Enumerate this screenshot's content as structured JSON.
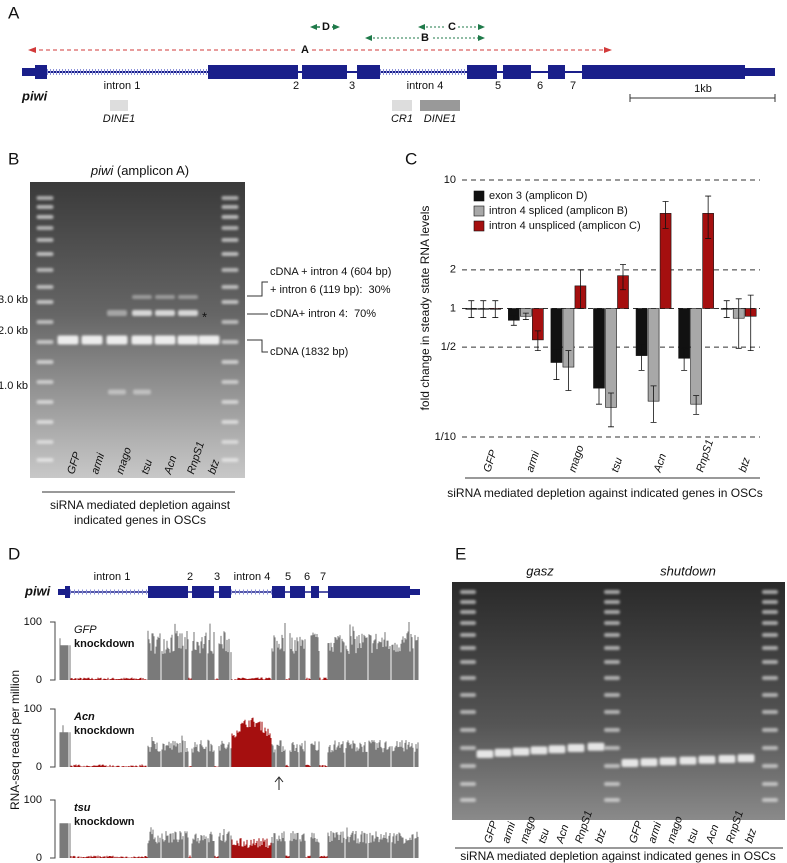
{
  "panel_a": {
    "label": "A",
    "amplicons": [
      "D",
      "C",
      "B",
      "A"
    ],
    "exon_labels": [
      "intron 1",
      "2",
      "3",
      "intron 4",
      "5",
      "6",
      "7"
    ],
    "gene": "piwi",
    "scale": "1kb",
    "elements": [
      "DINE1",
      "CR1",
      "DINE1"
    ]
  },
  "panel_b": {
    "label": "B",
    "title_gene": "piwi",
    "title_rest": " (amplicon A)",
    "sizes": [
      "3.0 kb",
      "2.0 kb",
      "1.0 kb"
    ],
    "lanes": [
      "GFP",
      "armi",
      "mago",
      "tsu",
      "Acn",
      "RnpS1",
      "btz"
    ],
    "star": "*",
    "annotations": [
      "cDNA + intron 4 (604 bp)",
      "+ intron 6 (119 bp):  30%",
      "cDNA+ intron 4:  70%",
      "cDNA (1832 bp)"
    ],
    "caption": [
      "siRNA mediated depletion against",
      "indicated genes in OSCs"
    ]
  },
  "chart_data": {
    "type": "bar",
    "label": "C",
    "y_label": "fold change in steady state RNA levels",
    "categories": [
      "GFP",
      "armi",
      "mago",
      "tsu",
      "Acn",
      "RnpS1",
      "btz"
    ],
    "log_scale": true,
    "ylim": [
      0.1,
      10
    ],
    "yticks": [
      {
        "value": 0.1,
        "label": "1/10"
      },
      {
        "value": 0.5,
        "label": "1/2"
      },
      1,
      2,
      10
    ],
    "grid": true,
    "legend": "upper left",
    "series": [
      {
        "name": "exon 3 (amplicon D)",
        "color": "#111111",
        "values": [
          1,
          0.81,
          0.38,
          0.24,
          0.43,
          0.41,
          1
        ],
        "errors": [
          0.15,
          0.07,
          0.1,
          0.06,
          0.1,
          0.08,
          0.15
        ]
      },
      {
        "name": "intron 4 spliced (amplicon B)",
        "color": "#a8a8a8",
        "values": [
          1,
          0.87,
          0.35,
          0.17,
          0.19,
          0.18,
          0.84
        ],
        "errors": [
          0.15,
          0.05,
          0.12,
          0.05,
          0.06,
          0.03,
          0.35
        ]
      },
      {
        "name": "intron 4 unspliced (amplicon C)",
        "color": "#a50f0f",
        "values": [
          1,
          0.57,
          1.5,
          1.8,
          5.5,
          5.5,
          0.87
        ],
        "errors": [
          0.15,
          0.1,
          0.5,
          0.4,
          1.3,
          2,
          0.4
        ]
      }
    ],
    "caption": "siRNA mediated depletion against indicated genes in OSCs"
  },
  "panel_d": {
    "label": "D",
    "gene": "piwi",
    "exon_labels": [
      "intron 1",
      "2",
      "3",
      "intron 4",
      "5",
      "6",
      "7"
    ],
    "y_label": "RNA-seq reads per million",
    "tracks": [
      {
        "gene": "GFP",
        "suffix": "knockdown",
        "max": 100,
        "min": 0
      },
      {
        "gene": "Acn",
        "suffix": "knockdown",
        "max": 100,
        "min": 0
      },
      {
        "gene": "tsu",
        "suffix": "knockdown",
        "max": 100,
        "min": 0
      }
    ]
  },
  "panel_e": {
    "label": "E",
    "groups": [
      "gasz",
      "shutdown"
    ],
    "lanes": [
      [
        "GFP",
        "armi",
        "mago",
        "tsu",
        "Acn",
        "RnpS1",
        "btz"
      ],
      [
        "GFP",
        "armi",
        "mago",
        "tsu",
        "Acn",
        "RnpS1",
        "btz"
      ]
    ],
    "caption": "siRNA mediated depletion against indicated genes in OSCs"
  }
}
